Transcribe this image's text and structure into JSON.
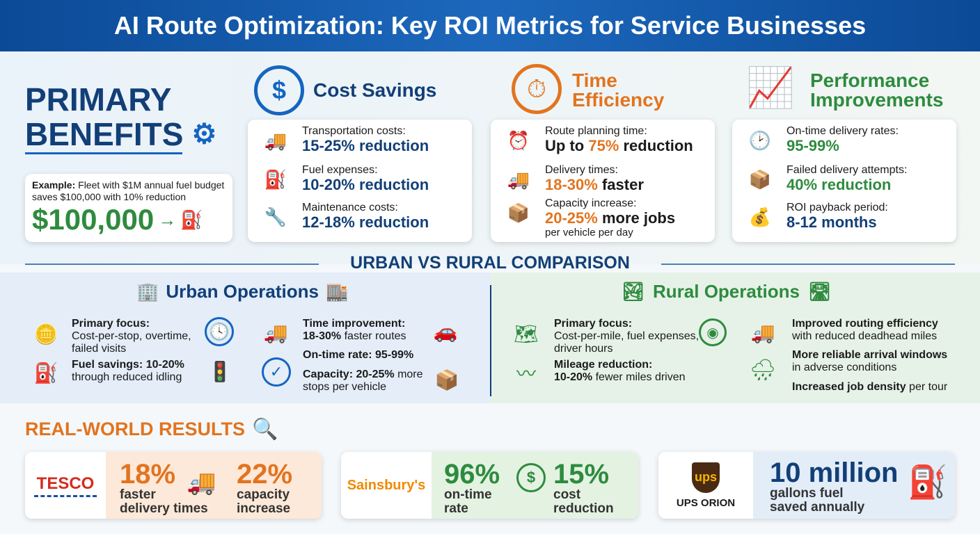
{
  "title": "AI Route Optimization: Key ROI Metrics for Service Businesses",
  "primary": {
    "line1": "PRIMARY",
    "line2": "BENEFITS",
    "example_prefix": "Example:",
    "example_text": "Fleet with $1M annual fuel budget saves $100,000 with 10% reduction",
    "amount": "$100,000"
  },
  "cost": {
    "title": "Cost Savings",
    "items": [
      {
        "label": "Transportation costs:",
        "value": "15-25% reduction"
      },
      {
        "label": "Fuel expenses:",
        "value": "10-20% reduction"
      },
      {
        "label": "Maintenance costs:",
        "value": "12-18% reduction"
      }
    ]
  },
  "time": {
    "title1": "Time",
    "title2": "Efficiency",
    "items": [
      {
        "label": "Route planning time:",
        "value_a": "Up to ",
        "value_b": "75%",
        "value_c": " reduction"
      },
      {
        "label": "Delivery times:",
        "value_a": "",
        "value_b": "18-30%",
        "value_c": " faster"
      },
      {
        "label": "Capacity increase:",
        "value_a": "",
        "value_b": "20-25%",
        "value_c": " more jobs",
        "sub": "per vehicle per day"
      }
    ]
  },
  "perf": {
    "title1": "Performance",
    "title2": "Improvements",
    "items": [
      {
        "label": "On-time delivery rates:",
        "value": "95-99%"
      },
      {
        "label": "Failed delivery attempts:",
        "value": "40% reduction"
      },
      {
        "label": "ROI payback period:",
        "value": "8-12 months"
      }
    ]
  },
  "comparison": {
    "title": "URBAN VS RURAL COMPARISON",
    "urban": {
      "title": "Urban Operations",
      "p1_b": "Primary focus:",
      "p1": "Cost-per-stop, overtime, failed visits",
      "p2_b": "Fuel savings: 10-20%",
      "p2": "through reduced idling",
      "p3_b": "Time improvement:",
      "p3_b2": "18-30%",
      "p3": " faster routes",
      "p4_b": "On-time rate: 95-99%",
      "p5_b": "Capacity: 20-25%",
      "p5": " more stops per vehicle"
    },
    "rural": {
      "title": "Rural Operations",
      "p1_b": "Primary focus:",
      "p1": "Cost-per-mile, fuel expenses, driver hours",
      "p2_b": "Mileage reduction:",
      "p2_b2": "10-20%",
      "p2": " fewer miles driven",
      "p3_b": "Improved routing efficiency",
      "p3": "with reduced deadhead miles",
      "p4_b": "More reliable arrival windows",
      "p4": "in adverse conditions",
      "p5_b": "Increased job density",
      "p5": " per tour"
    }
  },
  "results": {
    "title": "REAL-WORLD RESULTS",
    "tesco": {
      "logo": "TESCO",
      "v1": "18%",
      "l1a": "faster",
      "l1b": "delivery times",
      "v2": "22%",
      "l2a": "capacity",
      "l2b": "increase"
    },
    "sainsburys": {
      "logo": "Sainsbury's",
      "v1": "96%",
      "l1a": "on-time",
      "l1b": "rate",
      "v2": "15%",
      "l2a": "cost",
      "l2b": "reduction"
    },
    "ups": {
      "logo": "ups",
      "name": "UPS ORION",
      "v1": "10 million",
      "l1a": "gallons fuel",
      "l1b": "saved annually"
    }
  },
  "colors": {
    "navy": "#123f77",
    "blue": "#1565c0",
    "orange": "#e2741f",
    "green": "#2e8b3e"
  }
}
